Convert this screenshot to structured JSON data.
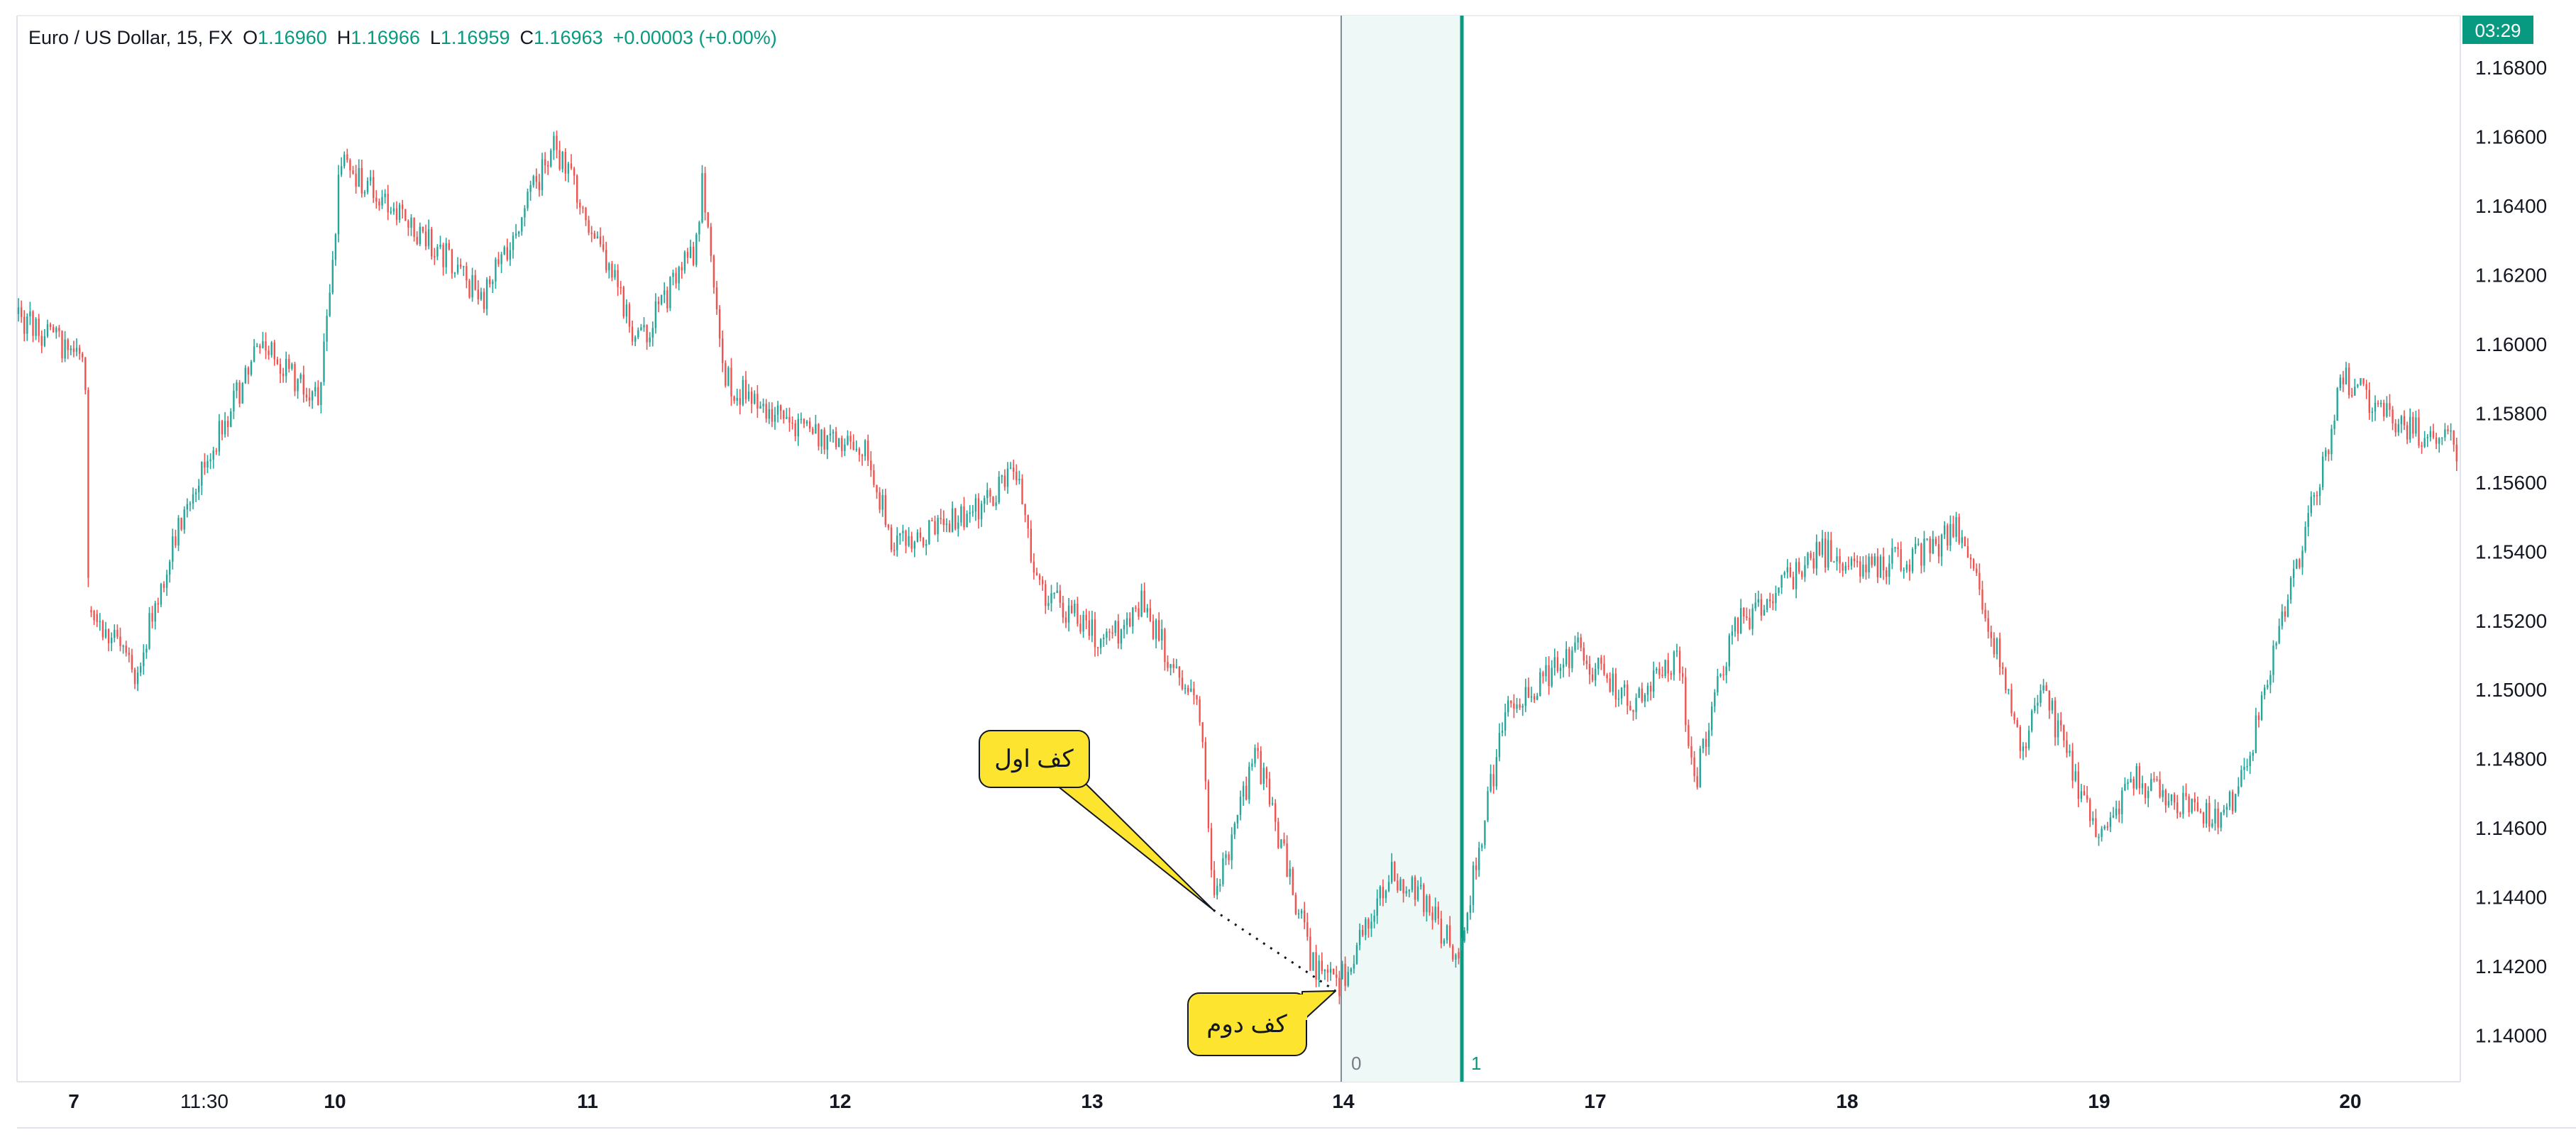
{
  "header": {
    "symbol": "Euro / US Dollar, 15, FX",
    "open_prefix": "O",
    "open": "1.16960",
    "high_prefix": "H",
    "high": "1.16966",
    "low_prefix": "L",
    "low": "1.16959",
    "close_prefix": "C",
    "close": "1.16963",
    "change": "+0.00003 (+0.00%)"
  },
  "countdown": "03:29",
  "colors": {
    "up": "#26a69a",
    "down": "#ef5350",
    "accent": "#089981",
    "callout": "#fde52f",
    "shade": "#eef8f7"
  },
  "annotations": {
    "first_bottom": "کف اول",
    "second_bottom": "کف دوم",
    "marker_0": "0",
    "marker_1": "1"
  },
  "chart_data": {
    "type": "candlestick",
    "title": "Euro / US Dollar, 15, FX",
    "x_tick_labels": [
      "7",
      "11:30",
      "10",
      "11",
      "12",
      "13",
      "14",
      "17",
      "18",
      "19",
      "20"
    ],
    "y_tick_labels": [
      "1.16800",
      "1.16600",
      "1.16400",
      "1.16200",
      "1.16000",
      "1.15800",
      "1.15600",
      "1.15400",
      "1.15200",
      "1.15000",
      "1.14800",
      "1.14600",
      "1.14400",
      "1.14200",
      "1.14000"
    ],
    "ylim": [
      1.1388,
      1.1695
    ],
    "grid": false,
    "path_sessions": [
      "7",
      "10",
      "11",
      "12",
      "13",
      "14",
      "17",
      "18",
      "19",
      "20"
    ],
    "path_close": [
      1.1608,
      1.1595,
      1.1525,
      1.1505,
      1.1555,
      1.1601,
      1.1582,
      1.1652,
      1.1625,
      1.1612,
      1.1658,
      1.1622,
      1.16,
      1.1628,
      1.1648,
      1.159,
      1.1575,
      1.1568,
      1.1542,
      1.1548,
      1.1555,
      1.1565,
      1.153,
      1.1513,
      1.1525,
      1.1492,
      1.144,
      1.1482,
      1.142,
      1.1415,
      1.1447,
      1.144,
      1.1423,
      1.1492,
      1.1512,
      1.1495,
      1.151,
      1.1472,
      1.1517,
      1.154,
      1.1535,
      1.154,
      1.1548,
      1.153,
      1.1482,
      1.15,
      1.147,
      1.1455,
      1.1475,
      1.1462,
      1.147,
      1.1568,
      1.159,
      1.1575,
      1.157
    ]
  }
}
